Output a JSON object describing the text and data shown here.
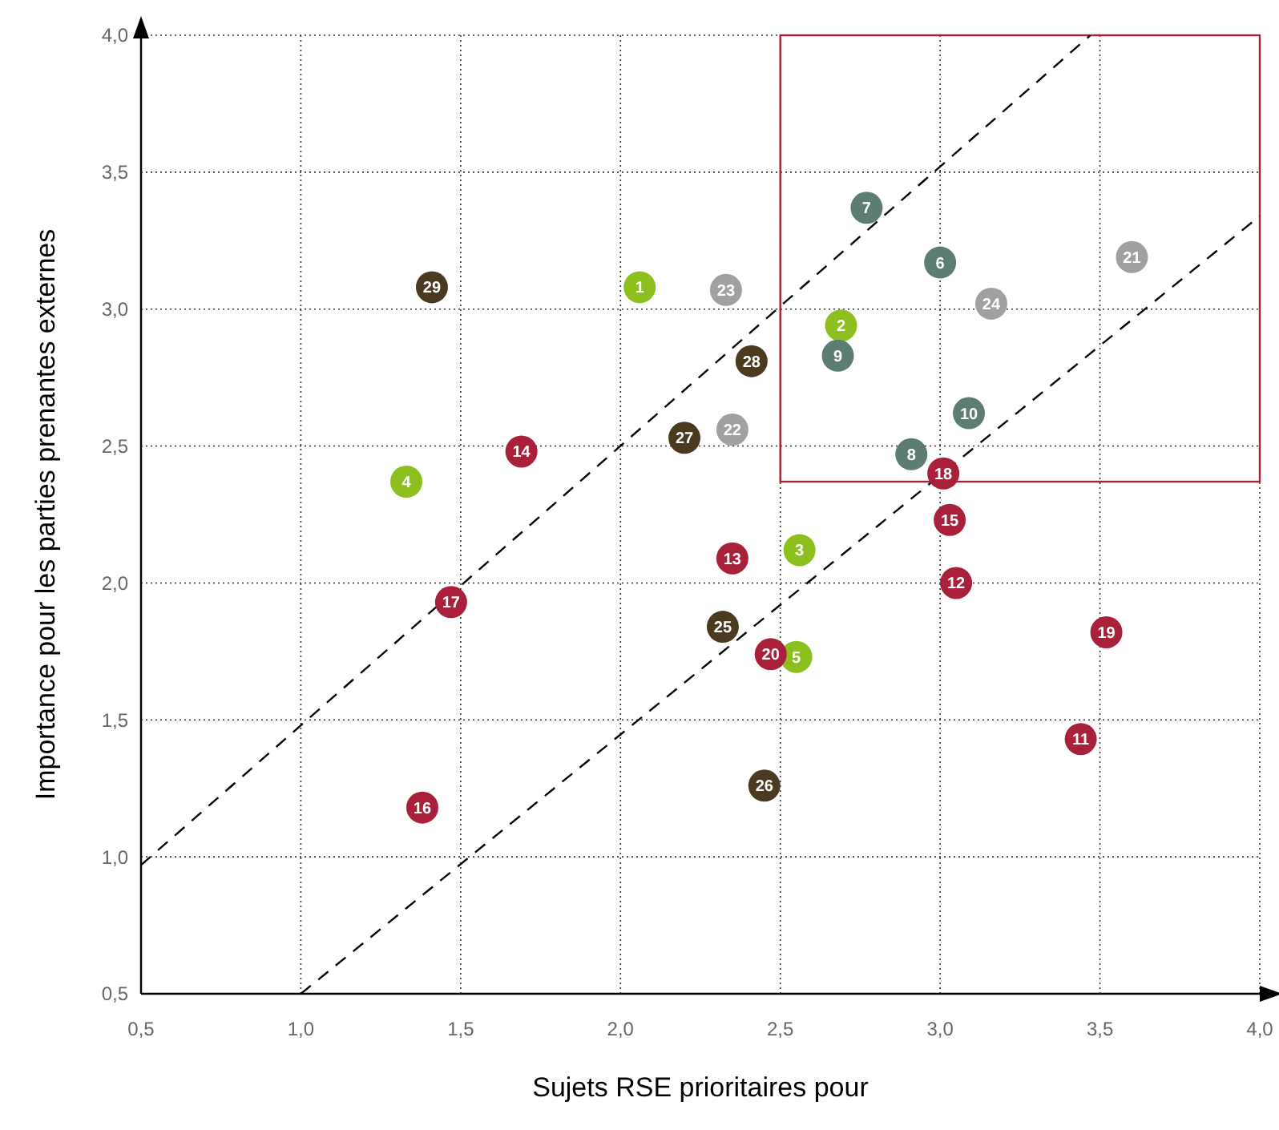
{
  "chart_data": {
    "type": "scatter",
    "xlabel": "Sujets RSE prioritaires pour",
    "ylabel": "Importance pour les parties prenantes externes",
    "xlim": [
      0.5,
      4.0
    ],
    "ylim": [
      0.5,
      4.0
    ],
    "xticks": [
      {
        "value": 0.5,
        "label": "0,5"
      },
      {
        "value": 1.0,
        "label": "1,0"
      },
      {
        "value": 1.5,
        "label": "1,5"
      },
      {
        "value": 2.0,
        "label": "2,0"
      },
      {
        "value": 2.5,
        "label": "2,5"
      },
      {
        "value": 3.0,
        "label": "3,0"
      },
      {
        "value": 3.5,
        "label": "3,5"
      },
      {
        "value": 4.0,
        "label": "4,0"
      }
    ],
    "yticks": [
      {
        "value": 0.5,
        "label": "0,5"
      },
      {
        "value": 1.0,
        "label": "1,0"
      },
      {
        "value": 1.5,
        "label": "1,5"
      },
      {
        "value": 2.0,
        "label": "2,0"
      },
      {
        "value": 2.5,
        "label": "2,5"
      },
      {
        "value": 3.0,
        "label": "3,0"
      },
      {
        "value": 3.5,
        "label": "3,5"
      },
      {
        "value": 4.0,
        "label": "4,0"
      }
    ],
    "grid": true,
    "marker": "circle",
    "series": [
      {
        "color": "#8dbf1f",
        "x": [
          2.06,
          2.69,
          2.56,
          1.33,
          2.55
        ],
        "values": [
          3.08,
          2.94,
          2.12,
          2.37,
          1.73
        ]
      },
      {
        "color": "#5e7d72",
        "x": [
          3.0,
          2.77,
          2.91,
          2.68,
          3.09
        ],
        "values": [
          3.17,
          3.37,
          2.47,
          2.83,
          2.62
        ]
      },
      {
        "color": "#a8203a",
        "x": [
          3.44,
          3.05,
          2.35,
          1.69,
          3.03,
          1.38,
          1.47,
          3.01,
          3.52,
          2.47
        ],
        "values": [
          1.43,
          2.0,
          2.09,
          2.48,
          2.23,
          1.18,
          1.93,
          2.4,
          1.82,
          1.74
        ]
      },
      {
        "color": "#a0a0a0",
        "x": [
          3.6,
          2.35,
          2.33,
          3.16
        ],
        "values": [
          3.19,
          2.56,
          3.07,
          3.02
        ]
      },
      {
        "color": "#4a3a22",
        "x": [
          2.32,
          2.45,
          2.2,
          2.41,
          1.41
        ],
        "values": [
          1.84,
          1.26,
          2.53,
          2.81,
          3.08
        ]
      },
      {
        "type": "line",
        "color": "#000000",
        "line_style": "dashed",
        "marker": "none",
        "x": [
          0.5,
          3.47
        ],
        "values": [
          0.97,
          4.0
        ]
      },
      {
        "type": "line",
        "color": "#000000",
        "line_style": "dashed",
        "marker": "none",
        "x": [
          1.0,
          4.0
        ],
        "values": [
          0.5,
          3.34
        ]
      }
    ],
    "annotations": [
      {
        "text": "1",
        "x": 2.06,
        "y": 3.08
      },
      {
        "text": "2",
        "x": 2.69,
        "y": 2.94
      },
      {
        "text": "3",
        "x": 2.56,
        "y": 2.12
      },
      {
        "text": "4",
        "x": 1.33,
        "y": 2.37
      },
      {
        "text": "5",
        "x": 2.55,
        "y": 1.73
      },
      {
        "text": "6",
        "x": 3.0,
        "y": 3.17
      },
      {
        "text": "7",
        "x": 2.77,
        "y": 3.37
      },
      {
        "text": "8",
        "x": 2.91,
        "y": 2.47
      },
      {
        "text": "9",
        "x": 2.68,
        "y": 2.83
      },
      {
        "text": "10",
        "x": 3.09,
        "y": 2.62
      },
      {
        "text": "11",
        "x": 3.44,
        "y": 1.43
      },
      {
        "text": "12",
        "x": 3.05,
        "y": 2.0
      },
      {
        "text": "13",
        "x": 2.35,
        "y": 2.09
      },
      {
        "text": "14",
        "x": 1.69,
        "y": 2.48
      },
      {
        "text": "15",
        "x": 3.03,
        "y": 2.23
      },
      {
        "text": "16",
        "x": 1.38,
        "y": 1.18
      },
      {
        "text": "17",
        "x": 1.47,
        "y": 1.93
      },
      {
        "text": "18",
        "x": 3.01,
        "y": 2.4
      },
      {
        "text": "19",
        "x": 3.52,
        "y": 1.82
      },
      {
        "text": "20",
        "x": 2.47,
        "y": 1.74
      },
      {
        "text": "21",
        "x": 3.6,
        "y": 3.19
      },
      {
        "text": "22",
        "x": 2.35,
        "y": 2.56
      },
      {
        "text": "23",
        "x": 2.33,
        "y": 3.07
      },
      {
        "text": "24",
        "x": 3.16,
        "y": 3.02
      },
      {
        "text": "25",
        "x": 2.32,
        "y": 1.84
      },
      {
        "text": "26",
        "x": 2.45,
        "y": 1.26
      },
      {
        "text": "27",
        "x": 2.2,
        "y": 2.53
      },
      {
        "text": "28",
        "x": 2.41,
        "y": 2.81
      },
      {
        "text": "29",
        "x": 1.41,
        "y": 3.08
      }
    ]
  }
}
